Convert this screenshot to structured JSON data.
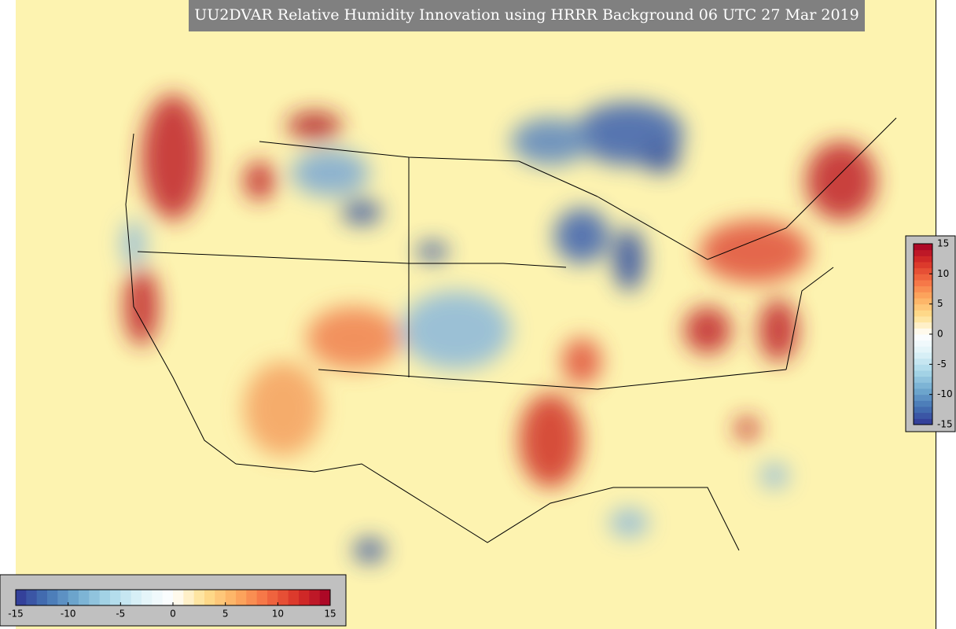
{
  "title": "UU2DVAR Relative Humidity Innovation using HRRR Background 06 UTC 27 Mar 2019",
  "colormap": [
    "#313695",
    "#4575b4",
    "#74add1",
    "#abd9e9",
    "#e0f3f8",
    "#ffffff",
    "#fee090",
    "#fdae61",
    "#f46d43",
    "#d73027",
    "#a50026"
  ],
  "colorbars": [
    {
      "orientation": "vertical",
      "lim": [
        -15,
        15
      ],
      "ticks": [
        -15,
        -10,
        -5,
        0,
        5,
        10,
        15
      ]
    },
    {
      "orientation": "horizontal",
      "lim": [
        -15,
        15
      ],
      "ticks": [
        -15,
        -10,
        -5,
        0,
        5,
        10,
        15
      ]
    }
  ]
}
